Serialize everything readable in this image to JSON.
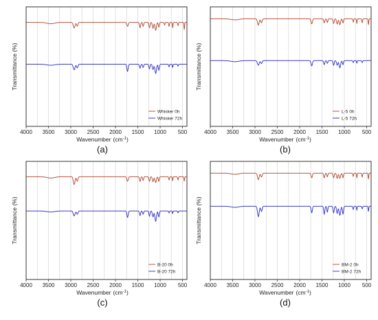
{
  "chart_data": [
    {
      "type": "line",
      "panel_label": "(a)",
      "xlabel": "Wavenumber",
      "xlabel_unit": "(cm",
      "xlabel_sup": "-1",
      "xlabel_close": ")",
      "ylabel": "Transmittance (%)",
      "xlim": [
        4000,
        400
      ],
      "x_reversed": true,
      "x_ticks": [
        "4000",
        "3500",
        "3000",
        "2500",
        "2000",
        "1500",
        "1000",
        "500"
      ],
      "grid": "vertical",
      "legend_position": "bottom-right",
      "series": [
        {
          "name": "Whisker 0h",
          "color": "#b5533c",
          "offset": 0.87,
          "peaks": [
            [
              3450,
              0.1,
              120
            ],
            [
              2925,
              0.42,
              28
            ],
            [
              2855,
              0.28,
              22
            ],
            [
              1730,
              0.3,
              22
            ],
            [
              1450,
              0.4,
              18
            ],
            [
              1380,
              0.3,
              16
            ],
            [
              1240,
              0.4,
              18
            ],
            [
              1160,
              0.45,
              20
            ],
            [
              1100,
              0.6,
              22
            ],
            [
              1030,
              0.35,
              16
            ],
            [
              900,
              0.2,
              12
            ],
            [
              800,
              0.3,
              12
            ],
            [
              720,
              0.4,
              10
            ],
            [
              600,
              0.25,
              12
            ],
            [
              460,
              0.55,
              10
            ]
          ]
        },
        {
          "name": "Whisker 72h",
          "color": "#3b3bc8",
          "offset": 0.52,
          "peaks": [
            [
              3450,
              0.08,
              120
            ],
            [
              2925,
              0.42,
              28
            ],
            [
              2855,
              0.28,
              22
            ],
            [
              1730,
              0.55,
              20
            ],
            [
              1450,
              0.3,
              18
            ],
            [
              1380,
              0.25,
              16
            ],
            [
              1240,
              0.35,
              18
            ],
            [
              1160,
              0.4,
              20
            ],
            [
              1100,
              0.7,
              24
            ],
            [
              1030,
              0.45,
              18
            ],
            [
              800,
              0.2,
              12
            ],
            [
              720,
              0.25,
              10
            ],
            [
              600,
              0.15,
              12
            ]
          ]
        }
      ]
    },
    {
      "type": "line",
      "panel_label": "(b)",
      "xlabel": "Wavenumber",
      "xlabel_unit": "(cm",
      "xlabel_sup": "-1",
      "xlabel_close": ")",
      "ylabel": "Transmittance (%)",
      "xlim": [
        4000,
        400
      ],
      "x_reversed": true,
      "x_ticks": [
        "4000",
        "3500",
        "3000",
        "2500",
        "2000",
        "1500",
        "1000",
        "500"
      ],
      "grid": "vertical",
      "legend_position": "bottom-right",
      "series": [
        {
          "name": "L-5 0h",
          "color": "#b5533c",
          "offset": 0.9,
          "peaks": [
            [
              3450,
              0.08,
              120
            ],
            [
              2925,
              0.48,
              26
            ],
            [
              2855,
              0.3,
              22
            ],
            [
              1730,
              0.38,
              22
            ],
            [
              1450,
              0.3,
              18
            ],
            [
              1380,
              0.28,
              16
            ],
            [
              1240,
              0.35,
              18
            ],
            [
              1160,
              0.4,
              20
            ],
            [
              1100,
              0.45,
              22
            ],
            [
              1030,
              0.3,
              16
            ],
            [
              800,
              0.25,
              12
            ],
            [
              720,
              0.35,
              10
            ],
            [
              600,
              0.3,
              12
            ],
            [
              460,
              0.45,
              10
            ]
          ]
        },
        {
          "name": "L-5 72h",
          "color": "#3b3bc8",
          "offset": 0.55,
          "peaks": [
            [
              3450,
              0.08,
              120
            ],
            [
              2925,
              0.35,
              28
            ],
            [
              2855,
              0.22,
              22
            ],
            [
              1730,
              0.4,
              22
            ],
            [
              1450,
              0.3,
              18
            ],
            [
              1380,
              0.2,
              16
            ],
            [
              1240,
              0.35,
              18
            ],
            [
              1160,
              0.35,
              20
            ],
            [
              1100,
              0.55,
              24
            ],
            [
              1030,
              0.3,
              16
            ],
            [
              800,
              0.15,
              12
            ],
            [
              720,
              0.2,
              10
            ],
            [
              600,
              0.15,
              12
            ]
          ]
        }
      ]
    },
    {
      "type": "line",
      "panel_label": "(c)",
      "xlabel": "Wavenumber",
      "xlabel_unit": "(cm",
      "xlabel_sup": "-1",
      "xlabel_close": ")",
      "ylabel": "Transmittance (%)",
      "xlim": [
        4000,
        400
      ],
      "x_reversed": true,
      "x_ticks": [
        "4000",
        "3500",
        "3000",
        "2500",
        "2000",
        "1500",
        "1000",
        "500"
      ],
      "grid": "vertical",
      "legend_position": "bottom-right",
      "series": [
        {
          "name": "B-20 0h",
          "color": "#b5533c",
          "offset": 0.87,
          "peaks": [
            [
              3450,
              0.1,
              120
            ],
            [
              2925,
              0.6,
              26
            ],
            [
              2855,
              0.35,
              22
            ],
            [
              1730,
              0.35,
              22
            ],
            [
              1450,
              0.35,
              18
            ],
            [
              1380,
              0.28,
              16
            ],
            [
              1240,
              0.35,
              18
            ],
            [
              1160,
              0.38,
              20
            ],
            [
              1100,
              0.45,
              22
            ],
            [
              1030,
              0.35,
              16
            ],
            [
              800,
              0.25,
              12
            ],
            [
              720,
              0.3,
              10
            ],
            [
              600,
              0.25,
              12
            ],
            [
              460,
              0.35,
              10
            ]
          ]
        },
        {
          "name": "B-20 72h",
          "color": "#3b3bc8",
          "offset": 0.58,
          "peaks": [
            [
              3450,
              0.08,
              120
            ],
            [
              2925,
              0.38,
              28
            ],
            [
              2855,
              0.25,
              22
            ],
            [
              1730,
              0.5,
              20
            ],
            [
              1450,
              0.35,
              18
            ],
            [
              1380,
              0.25,
              16
            ],
            [
              1240,
              0.4,
              18
            ],
            [
              1160,
              0.45,
              20
            ],
            [
              1100,
              0.8,
              24
            ],
            [
              1030,
              0.45,
              18
            ],
            [
              800,
              0.15,
              12
            ],
            [
              720,
              0.2,
              10
            ],
            [
              600,
              0.15,
              12
            ]
          ]
        }
      ]
    },
    {
      "type": "line",
      "panel_label": "(d)",
      "xlabel": "Wavenumber",
      "xlabel_unit": "(cm",
      "xlabel_sup": "-1",
      "xlabel_close": ")",
      "ylabel": "Transmittance (%)",
      "xlim": [
        4000,
        400
      ],
      "x_reversed": true,
      "x_ticks": [
        "4000",
        "3500",
        "3000",
        "2500",
        "2000",
        "1500",
        "1000",
        "500"
      ],
      "grid": "vertical",
      "legend_position": "bottom-right",
      "series": [
        {
          "name": "BM-2 0h",
          "color": "#b5533c",
          "offset": 0.9,
          "peaks": [
            [
              3450,
              0.08,
              120
            ],
            [
              2925,
              0.5,
              26
            ],
            [
              2855,
              0.3,
              22
            ],
            [
              1730,
              0.35,
              22
            ],
            [
              1450,
              0.35,
              18
            ],
            [
              1380,
              0.28,
              16
            ],
            [
              1240,
              0.35,
              18
            ],
            [
              1160,
              0.4,
              20
            ],
            [
              1100,
              0.4,
              22
            ],
            [
              1030,
              0.35,
              16
            ],
            [
              800,
              0.25,
              12
            ],
            [
              720,
              0.35,
              10
            ],
            [
              600,
              0.3,
              12
            ],
            [
              460,
              0.45,
              10
            ]
          ]
        },
        {
          "name": "BM-2 72h",
          "color": "#3b3bc8",
          "offset": 0.62,
          "peaks": [
            [
              3450,
              0.08,
              120
            ],
            [
              2925,
              0.8,
              26
            ],
            [
              2855,
              0.4,
              22
            ],
            [
              1730,
              0.5,
              20
            ],
            [
              1450,
              0.6,
              18
            ],
            [
              1380,
              0.45,
              16
            ],
            [
              1240,
              0.5,
              18
            ],
            [
              1160,
              0.55,
              20
            ],
            [
              1100,
              0.7,
              24
            ],
            [
              1030,
              0.6,
              18
            ],
            [
              800,
              0.25,
              12
            ],
            [
              720,
              0.3,
              10
            ],
            [
              600,
              0.2,
              12
            ],
            [
              460,
              0.4,
              10
            ]
          ]
        }
      ]
    }
  ]
}
